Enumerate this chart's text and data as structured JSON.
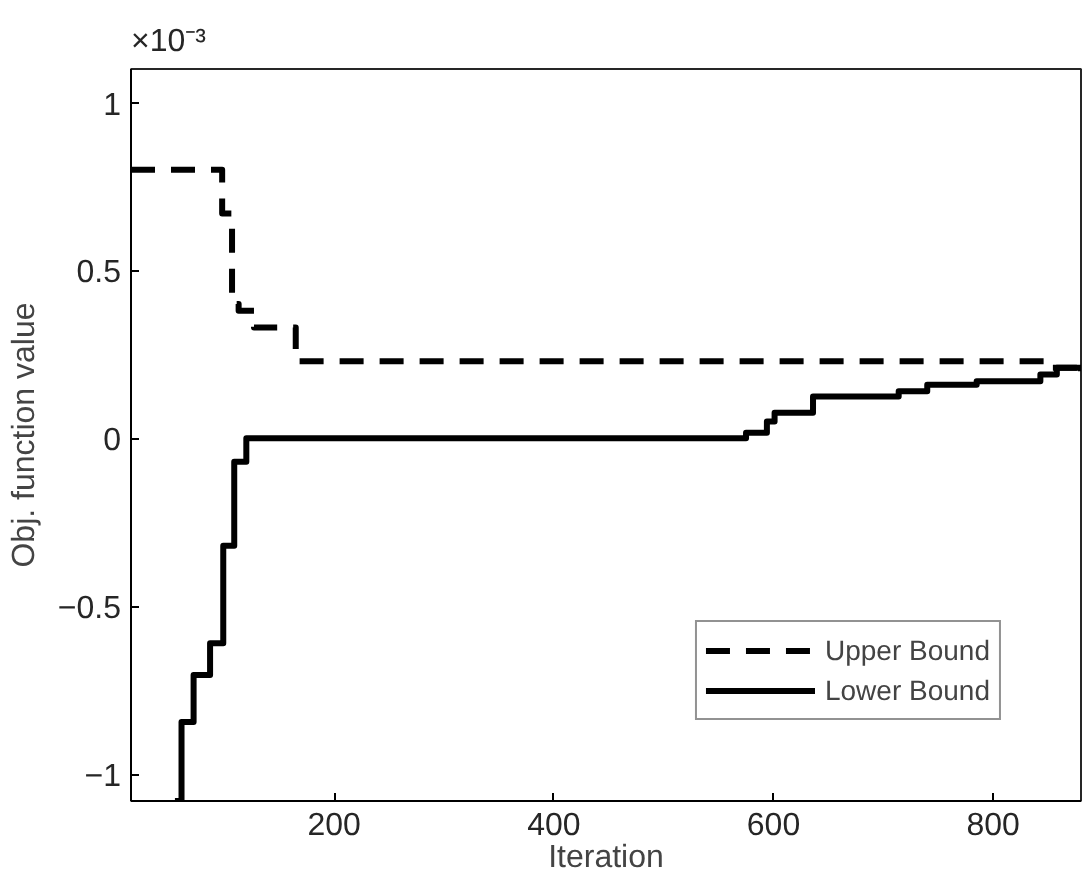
{
  "chart_data": {
    "type": "step",
    "xlabel": "Iteration",
    "ylabel": "Obj. function value",
    "annotations": [
      "×10⁻³"
    ],
    "xlim": [
      15,
      880
    ],
    "ylim": [
      -1.08,
      1.1
    ],
    "xticks": [
      200,
      400,
      600,
      800
    ],
    "yticks": [
      -1,
      -0.5,
      0,
      0.5,
      1
    ],
    "legend": "bottom right",
    "grid": false,
    "series": [
      {
        "name": "Upper Bound",
        "color": "#000000",
        "line_style": "dashed",
        "x": [
          15,
          98,
          107,
          113,
          127,
          140,
          165,
          850,
          880
        ],
        "values": [
          0.8,
          0.67,
          0.4,
          0.38,
          0.33,
          0.33,
          0.23,
          0.21,
          0.21
        ]
      },
      {
        "name": "Lower Bound",
        "color": "#000000",
        "line_style": "solid",
        "x": [
          55,
          61,
          72,
          87,
          99,
          109,
          120,
          575,
          594,
          601,
          636,
          714,
          740,
          785,
          843,
          858,
          880
        ],
        "values": [
          -1.08,
          -0.845,
          -0.705,
          -0.61,
          -0.32,
          -0.07,
          0,
          0.017,
          0.05,
          0.076,
          0.125,
          0.14,
          0.16,
          0.17,
          0.19,
          0.21,
          0.2
        ]
      }
    ]
  }
}
